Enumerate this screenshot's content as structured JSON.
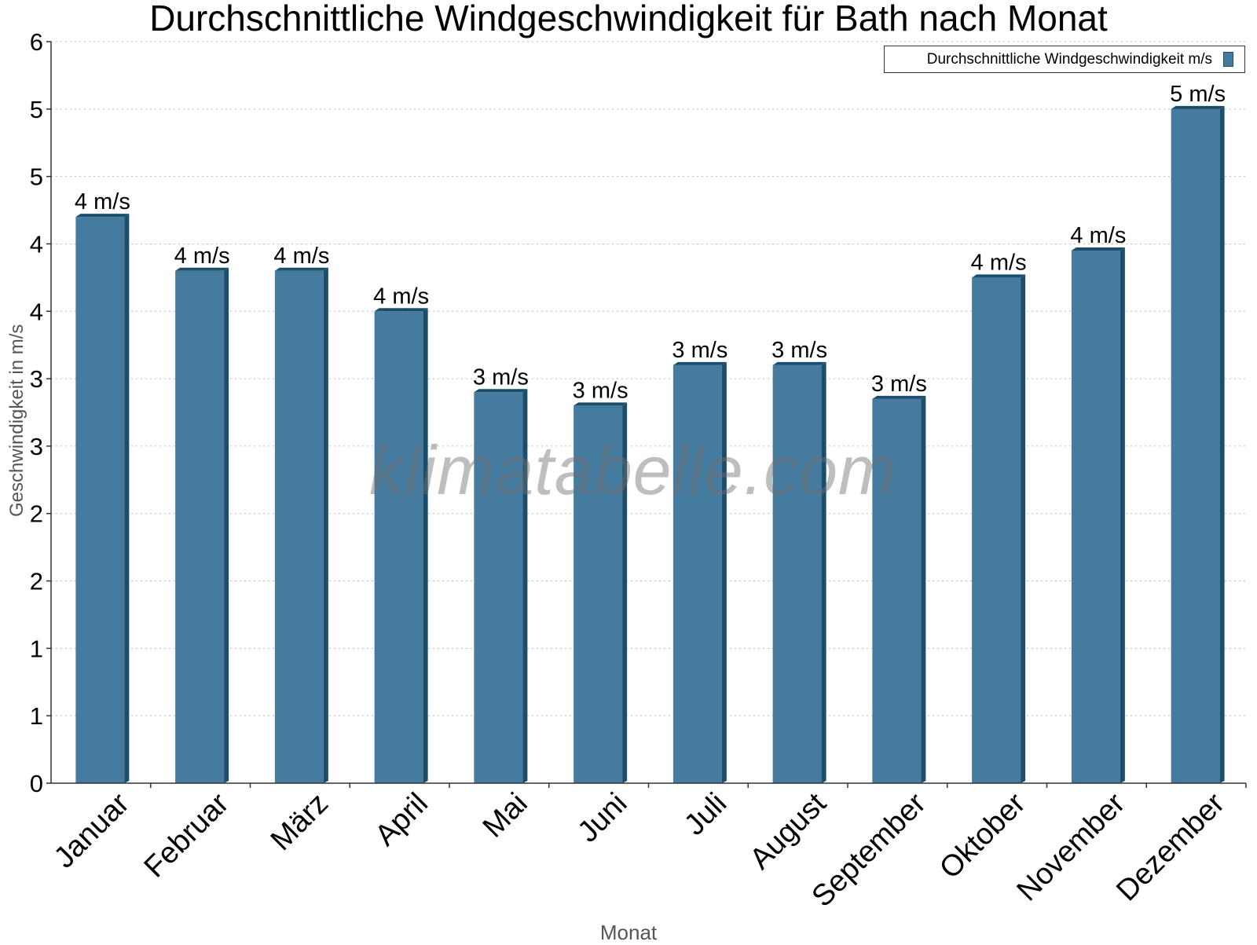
{
  "chart_data": {
    "type": "bar",
    "title": "Durchschnittliche Windgeschwindigkeit für Bath nach Monat",
    "xlabel": "Monat",
    "ylabel": "Geschwindigkeit in m/s",
    "categories": [
      "Januar",
      "Februar",
      "März",
      "April",
      "Mai",
      "Juni",
      "Juli",
      "August",
      "September",
      "Oktober",
      "November",
      "Dezember"
    ],
    "series": [
      {
        "name": "Durchschnittliche Windgeschwindigkeit m/s",
        "color": "#467BA0",
        "values": [
          4.2,
          3.8,
          3.8,
          3.5,
          2.9,
          2.8,
          3.1,
          3.1,
          2.85,
          3.75,
          3.95,
          5.0
        ],
        "data_labels": [
          "4 m/s",
          "4 m/s",
          "4 m/s",
          "4 m/s",
          "3 m/s",
          "3 m/s",
          "3 m/s",
          "3 m/s",
          "3 m/s",
          "4 m/s",
          "4 m/s",
          "5 m/s"
        ]
      }
    ],
    "ylim": [
      0,
      5.5
    ],
    "yticks": [
      0,
      0.5,
      1,
      1.5,
      2,
      2.5,
      3,
      3.5,
      4,
      4.5,
      5,
      5.5
    ],
    "ytick_labels": [
      "0",
      "1",
      "1",
      "2",
      "2",
      "3",
      "3",
      "4",
      "4",
      "5",
      "5",
      "6"
    ],
    "grid": "horizontal-dotted",
    "legend": "top-right"
  },
  "watermark": "klimatabelle.com"
}
